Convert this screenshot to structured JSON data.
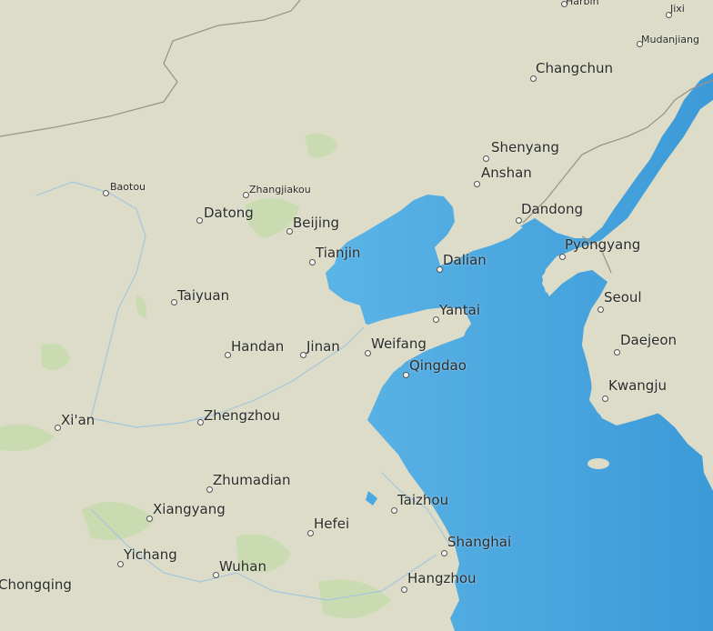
{
  "colors": {
    "land": "#dcdcc8",
    "water": "#4aa9e0",
    "deep_water": "#3c9ad8",
    "border": "#9a948a",
    "river": "#a6c6dd",
    "vegetation": "#c4dbaa"
  },
  "cities": [
    {
      "name": "Harbin",
      "size": "small"
    },
    {
      "name": "Jixi",
      "size": "small"
    },
    {
      "name": "Mudanjiang",
      "size": "small"
    },
    {
      "name": "Changchun",
      "size": "normal"
    },
    {
      "name": "Shenyang",
      "size": "normal"
    },
    {
      "name": "Anshan",
      "size": "normal"
    },
    {
      "name": "Dandong",
      "size": "normal"
    },
    {
      "name": "Pyongyang",
      "size": "normal"
    },
    {
      "name": "Baotou",
      "size": "small"
    },
    {
      "name": "Zhangjiakou",
      "size": "small"
    },
    {
      "name": "Datong",
      "size": "normal"
    },
    {
      "name": "Beijing",
      "size": "normal"
    },
    {
      "name": "Tianjin",
      "size": "normal"
    },
    {
      "name": "Dalian",
      "size": "normal"
    },
    {
      "name": "Taiyuan",
      "size": "normal"
    },
    {
      "name": "Yantai",
      "size": "normal"
    },
    {
      "name": "Seoul",
      "size": "normal"
    },
    {
      "name": "Handan",
      "size": "normal"
    },
    {
      "name": "Jinan",
      "size": "normal"
    },
    {
      "name": "Weifang",
      "size": "normal"
    },
    {
      "name": "Daejeon",
      "size": "normal"
    },
    {
      "name": "Qingdao",
      "size": "normal"
    },
    {
      "name": "Kwangju",
      "size": "normal"
    },
    {
      "name": "Xi'an",
      "size": "normal"
    },
    {
      "name": "Zhengzhou",
      "size": "normal"
    },
    {
      "name": "Zhumadian",
      "size": "normal"
    },
    {
      "name": "Taizhou",
      "size": "normal"
    },
    {
      "name": "Hefei",
      "size": "normal"
    },
    {
      "name": "Shanghai",
      "size": "normal"
    },
    {
      "name": "Yichang",
      "size": "normal"
    },
    {
      "name": "Wuhan",
      "size": "normal"
    },
    {
      "name": "Chongqing",
      "size": "normal"
    },
    {
      "name": "Hangzhou",
      "size": "normal"
    },
    {
      "name": "Xiangyang",
      "size": "normal"
    }
  ]
}
